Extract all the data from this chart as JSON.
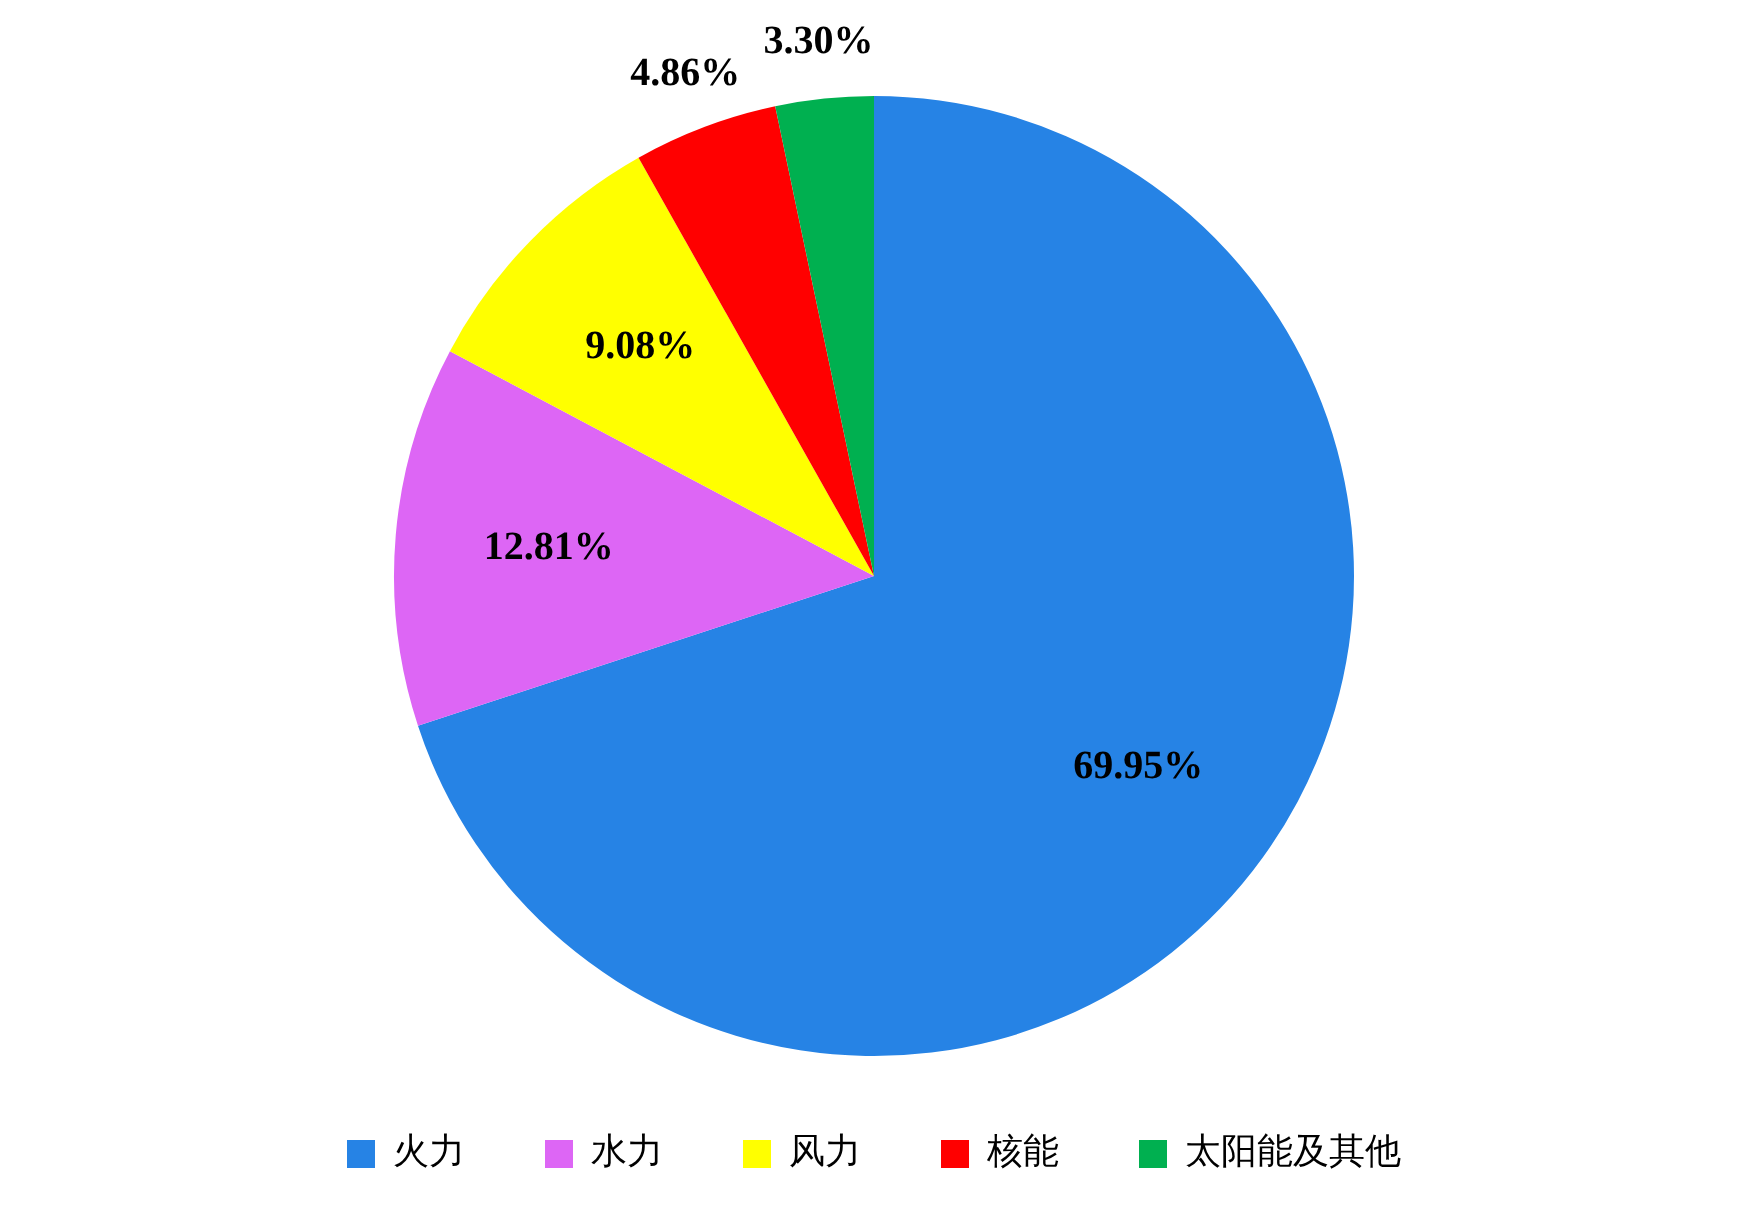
{
  "chart_data": {
    "type": "pie",
    "categories": [
      "火力",
      "水力",
      "风力",
      "核能",
      "太阳能及其他"
    ],
    "values": [
      69.95,
      12.81,
      9.08,
      4.86,
      3.3
    ],
    "colors": [
      "#2683e5",
      "#dd66f5",
      "#ffff00",
      "#ff0000",
      "#00b050"
    ],
    "value_labels": [
      "69.95%",
      "12.81%",
      "9.08%",
      "4.86%",
      "3.30%"
    ],
    "legend": "bottom"
  }
}
